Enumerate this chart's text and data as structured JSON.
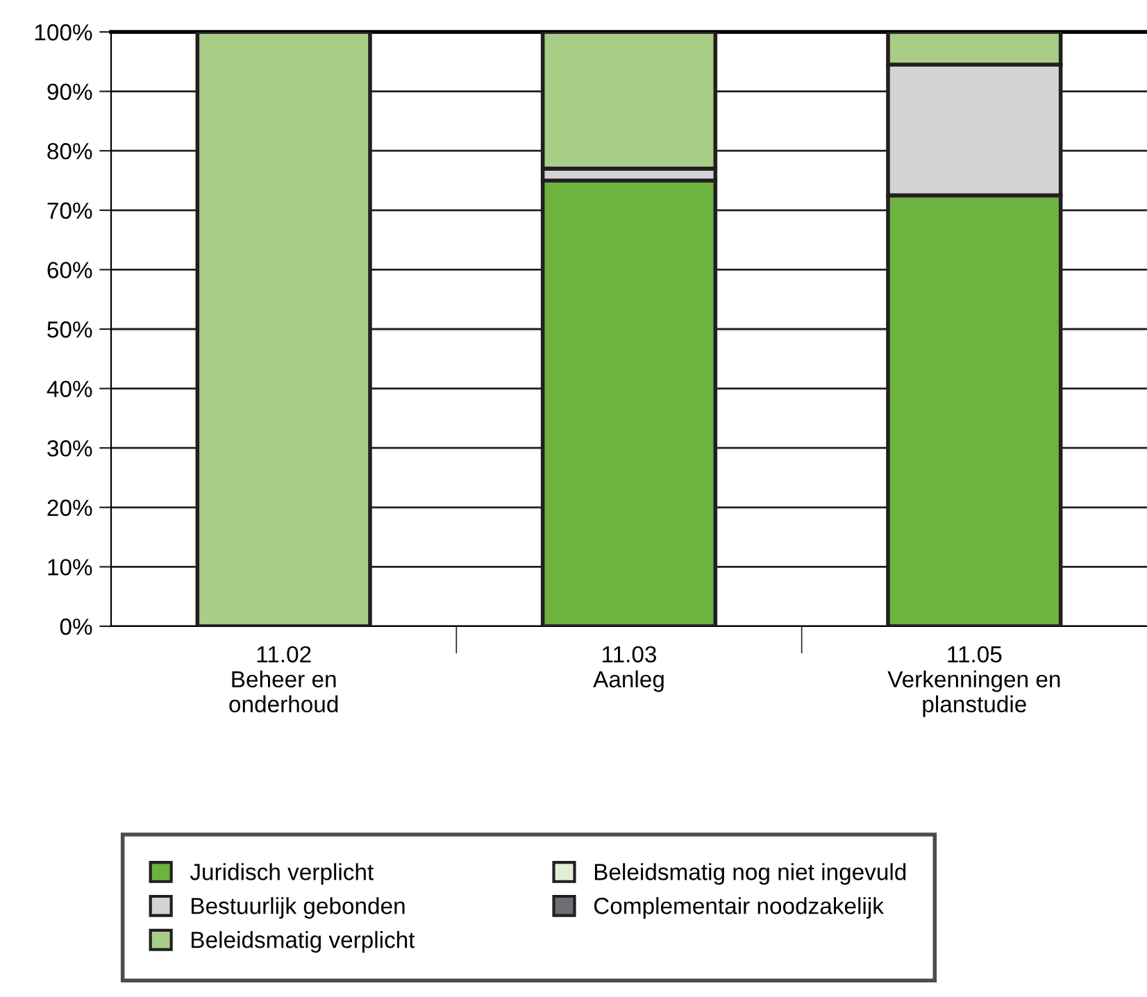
{
  "chart_data": {
    "type": "bar",
    "stacked": true,
    "categories": [
      "11.02\nBeheer en\nonderhoud",
      "11.03\nAanleg",
      "11.05\nVerkenningen en\nplanstudie"
    ],
    "series": [
      {
        "name": "Juridisch verplicht",
        "color": "#6db33f",
        "values": [
          0,
          75,
          72.5
        ]
      },
      {
        "name": "Bestuurlijk gebonden",
        "color": "#d1d3d4",
        "values": [
          0,
          2,
          22
        ]
      },
      {
        "name": "Beleidsmatig verplicht",
        "color": "#a8cd86",
        "values": [
          100,
          23,
          5.5
        ]
      },
      {
        "name": "Beleidsmatig nog niet ingevuld",
        "color": "#e0eed3",
        "values": [
          0,
          0,
          0
        ]
      },
      {
        "name": "Complementair noodzakelijk",
        "color": "#6d6e71",
        "values": [
          0,
          0,
          0
        ]
      }
    ],
    "ylim": [
      0,
      100
    ],
    "yticks": [
      {
        "value": 0,
        "label": "0%"
      },
      {
        "value": 10,
        "label": "10%"
      },
      {
        "value": 20,
        "label": "20%"
      },
      {
        "value": 30,
        "label": "30%"
      },
      {
        "value": 40,
        "label": "40%"
      },
      {
        "value": 50,
        "label": "50%"
      },
      {
        "value": 60,
        "label": "60%"
      },
      {
        "value": 70,
        "label": "70%"
      },
      {
        "value": 80,
        "label": "80%"
      },
      {
        "value": 90,
        "label": "90%"
      },
      {
        "value": 100,
        "label": "100%"
      }
    ],
    "grid": "y",
    "legend": "bottom"
  }
}
